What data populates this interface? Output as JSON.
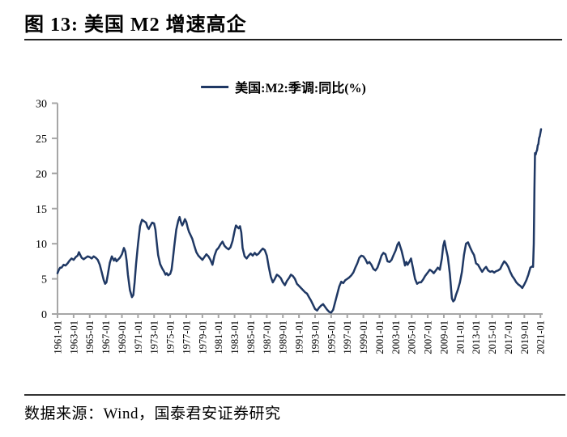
{
  "header": {
    "title": "图 13: 美国 M2 增速高企"
  },
  "footer": {
    "source_text": "数据来源：Wind，国泰君安证券研究"
  },
  "colors": {
    "line": "#1f3864",
    "axis": "#a6a6a6",
    "text": "#000000",
    "rule": "#222222"
  },
  "chart_data": {
    "type": "line",
    "title": "图 13: 美国 M2 增速高企",
    "xlabel": "",
    "ylabel": "",
    "ylim": [
      0,
      30
    ],
    "yticks": [
      0,
      5,
      10,
      15,
      20,
      25,
      30
    ],
    "xlim": [
      1961.0,
      2021.08
    ],
    "x_units": "decimal_year",
    "grid": false,
    "legend_position": "top-center",
    "axis_color": "#a6a6a6",
    "xtick_labels": [
      "1961-01",
      "1963-01",
      "1965-01",
      "1967-01",
      "1969-01",
      "1971-01",
      "1973-01",
      "1975-01",
      "1977-01",
      "1979-01",
      "1981-01",
      "1983-01",
      "1985-01",
      "1987-01",
      "1989-01",
      "1991-01",
      "1993-01",
      "1995-01",
      "1997-01",
      "1999-01",
      "2001-01",
      "2003-01",
      "2005-01",
      "2007-01",
      "2009-01",
      "2011-01",
      "2013-01",
      "2015-01",
      "2017-01",
      "2019-01",
      "2021-01"
    ],
    "series": [
      {
        "name": "美国:M2:季调:同比(%)",
        "color": "#1f3864",
        "points": [
          [
            1961.0,
            5.8
          ],
          [
            1961.17,
            6.3
          ],
          [
            1961.33,
            6.6
          ],
          [
            1961.5,
            6.6
          ],
          [
            1961.75,
            7.0
          ],
          [
            1962.0,
            6.9
          ],
          [
            1962.25,
            7.2
          ],
          [
            1962.5,
            7.6
          ],
          [
            1962.75,
            7.9
          ],
          [
            1963.0,
            7.7
          ],
          [
            1963.25,
            8.1
          ],
          [
            1963.5,
            8.3
          ],
          [
            1963.67,
            8.8
          ],
          [
            1963.83,
            8.4
          ],
          [
            1964.0,
            8.0
          ],
          [
            1964.25,
            7.8
          ],
          [
            1964.5,
            8.0
          ],
          [
            1964.75,
            8.2
          ],
          [
            1965.0,
            8.1
          ],
          [
            1965.25,
            7.9
          ],
          [
            1965.5,
            8.2
          ],
          [
            1965.75,
            8.0
          ],
          [
            1966.0,
            7.7
          ],
          [
            1966.25,
            7.0
          ],
          [
            1966.5,
            5.9
          ],
          [
            1966.75,
            4.8
          ],
          [
            1966.92,
            4.3
          ],
          [
            1967.08,
            4.5
          ],
          [
            1967.25,
            5.6
          ],
          [
            1967.5,
            7.3
          ],
          [
            1967.75,
            8.2
          ],
          [
            1968.0,
            7.6
          ],
          [
            1968.17,
            7.9
          ],
          [
            1968.33,
            7.5
          ],
          [
            1968.5,
            7.7
          ],
          [
            1968.75,
            8.0
          ],
          [
            1969.0,
            8.5
          ],
          [
            1969.25,
            9.4
          ],
          [
            1969.42,
            8.9
          ],
          [
            1969.58,
            7.6
          ],
          [
            1969.75,
            5.6
          ],
          [
            1970.0,
            3.4
          ],
          [
            1970.25,
            2.4
          ],
          [
            1970.42,
            2.7
          ],
          [
            1970.58,
            4.5
          ],
          [
            1970.75,
            7.0
          ],
          [
            1971.0,
            10.0
          ],
          [
            1971.25,
            12.5
          ],
          [
            1971.5,
            13.4
          ],
          [
            1971.75,
            13.2
          ],
          [
            1972.0,
            13.0
          ],
          [
            1972.17,
            12.4
          ],
          [
            1972.33,
            12.1
          ],
          [
            1972.5,
            12.5
          ],
          [
            1972.75,
            13.0
          ],
          [
            1973.0,
            12.9
          ],
          [
            1973.17,
            12.0
          ],
          [
            1973.33,
            10.2
          ],
          [
            1973.5,
            8.4
          ],
          [
            1973.75,
            7.1
          ],
          [
            1974.0,
            6.5
          ],
          [
            1974.25,
            6.0
          ],
          [
            1974.42,
            5.6
          ],
          [
            1974.58,
            5.8
          ],
          [
            1974.75,
            5.5
          ],
          [
            1975.0,
            5.7
          ],
          [
            1975.17,
            6.3
          ],
          [
            1975.33,
            7.8
          ],
          [
            1975.5,
            9.6
          ],
          [
            1975.75,
            12.0
          ],
          [
            1976.0,
            13.3
          ],
          [
            1976.17,
            13.8
          ],
          [
            1976.33,
            13.1
          ],
          [
            1976.5,
            12.6
          ],
          [
            1976.67,
            13.0
          ],
          [
            1976.83,
            13.5
          ],
          [
            1977.0,
            13.1
          ],
          [
            1977.17,
            12.3
          ],
          [
            1977.33,
            11.7
          ],
          [
            1977.5,
            11.3
          ],
          [
            1977.75,
            10.7
          ],
          [
            1978.0,
            9.7
          ],
          [
            1978.25,
            8.8
          ],
          [
            1978.5,
            8.3
          ],
          [
            1978.75,
            8.0
          ],
          [
            1979.0,
            7.7
          ],
          [
            1979.25,
            8.1
          ],
          [
            1979.5,
            8.5
          ],
          [
            1979.75,
            8.2
          ],
          [
            1980.0,
            7.7
          ],
          [
            1980.25,
            7.0
          ],
          [
            1980.5,
            8.3
          ],
          [
            1980.75,
            9.1
          ],
          [
            1981.0,
            9.4
          ],
          [
            1981.25,
            9.9
          ],
          [
            1981.5,
            10.3
          ],
          [
            1981.75,
            9.7
          ],
          [
            1982.0,
            9.4
          ],
          [
            1982.25,
            9.2
          ],
          [
            1982.5,
            9.5
          ],
          [
            1982.75,
            10.4
          ],
          [
            1983.0,
            11.8
          ],
          [
            1983.17,
            12.6
          ],
          [
            1983.33,
            12.4
          ],
          [
            1983.5,
            12.2
          ],
          [
            1983.67,
            12.5
          ],
          [
            1983.83,
            11.6
          ],
          [
            1984.0,
            9.4
          ],
          [
            1984.25,
            8.2
          ],
          [
            1984.5,
            7.9
          ],
          [
            1984.75,
            8.3
          ],
          [
            1985.0,
            8.6
          ],
          [
            1985.25,
            8.3
          ],
          [
            1985.5,
            8.7
          ],
          [
            1985.75,
            8.4
          ],
          [
            1986.0,
            8.6
          ],
          [
            1986.25,
            9.0
          ],
          [
            1986.5,
            9.3
          ],
          [
            1986.75,
            9.1
          ],
          [
            1987.0,
            8.3
          ],
          [
            1987.25,
            6.7
          ],
          [
            1987.5,
            5.3
          ],
          [
            1987.75,
            4.5
          ],
          [
            1988.0,
            5.0
          ],
          [
            1988.25,
            5.6
          ],
          [
            1988.5,
            5.4
          ],
          [
            1988.75,
            5.1
          ],
          [
            1989.0,
            4.5
          ],
          [
            1989.25,
            4.1
          ],
          [
            1989.5,
            4.7
          ],
          [
            1989.75,
            5.1
          ],
          [
            1990.0,
            5.6
          ],
          [
            1990.25,
            5.4
          ],
          [
            1990.5,
            5.0
          ],
          [
            1990.75,
            4.3
          ],
          [
            1991.0,
            4.0
          ],
          [
            1991.25,
            3.7
          ],
          [
            1991.5,
            3.4
          ],
          [
            1991.75,
            3.1
          ],
          [
            1992.0,
            2.9
          ],
          [
            1992.25,
            2.4
          ],
          [
            1992.5,
            1.9
          ],
          [
            1992.75,
            1.3
          ],
          [
            1993.0,
            0.7
          ],
          [
            1993.25,
            0.5
          ],
          [
            1993.5,
            0.9
          ],
          [
            1993.75,
            1.2
          ],
          [
            1994.0,
            1.4
          ],
          [
            1994.25,
            1.0
          ],
          [
            1994.5,
            0.6
          ],
          [
            1994.75,
            0.3
          ],
          [
            1995.0,
            0.2
          ],
          [
            1995.25,
            0.6
          ],
          [
            1995.5,
            1.7
          ],
          [
            1995.75,
            2.8
          ],
          [
            1996.0,
            3.9
          ],
          [
            1996.25,
            4.6
          ],
          [
            1996.5,
            4.4
          ],
          [
            1996.75,
            4.8
          ],
          [
            1997.0,
            5.0
          ],
          [
            1997.25,
            5.2
          ],
          [
            1997.5,
            5.5
          ],
          [
            1997.75,
            5.9
          ],
          [
            1998.0,
            6.6
          ],
          [
            1998.25,
            7.2
          ],
          [
            1998.5,
            8.0
          ],
          [
            1998.75,
            8.3
          ],
          [
            1999.0,
            8.2
          ],
          [
            1999.25,
            7.8
          ],
          [
            1999.5,
            7.2
          ],
          [
            1999.75,
            7.4
          ],
          [
            2000.0,
            7.0
          ],
          [
            2000.25,
            6.4
          ],
          [
            2000.5,
            6.2
          ],
          [
            2000.75,
            6.6
          ],
          [
            2001.0,
            7.4
          ],
          [
            2001.25,
            8.3
          ],
          [
            2001.5,
            8.7
          ],
          [
            2001.75,
            8.5
          ],
          [
            2002.0,
            7.5
          ],
          [
            2002.25,
            7.4
          ],
          [
            2002.5,
            7.7
          ],
          [
            2002.75,
            8.4
          ],
          [
            2003.0,
            9.0
          ],
          [
            2003.25,
            9.9
          ],
          [
            2003.42,
            10.2
          ],
          [
            2003.58,
            9.6
          ],
          [
            2003.75,
            9.0
          ],
          [
            2004.0,
            7.8
          ],
          [
            2004.17,
            6.9
          ],
          [
            2004.33,
            7.4
          ],
          [
            2004.5,
            7.0
          ],
          [
            2004.75,
            7.5
          ],
          [
            2004.92,
            7.9
          ],
          [
            2005.17,
            6.5
          ],
          [
            2005.42,
            5.0
          ],
          [
            2005.67,
            4.3
          ],
          [
            2005.92,
            4.5
          ],
          [
            2006.17,
            4.5
          ],
          [
            2006.42,
            4.9
          ],
          [
            2006.67,
            5.4
          ],
          [
            2007.0,
            5.9
          ],
          [
            2007.25,
            6.3
          ],
          [
            2007.5,
            6.1
          ],
          [
            2007.75,
            5.8
          ],
          [
            2008.0,
            6.2
          ],
          [
            2008.25,
            6.6
          ],
          [
            2008.5,
            6.3
          ],
          [
            2008.75,
            7.9
          ],
          [
            2008.92,
            9.7
          ],
          [
            2009.08,
            10.4
          ],
          [
            2009.25,
            9.4
          ],
          [
            2009.5,
            8.1
          ],
          [
            2009.75,
            5.7
          ],
          [
            2010.0,
            2.2
          ],
          [
            2010.17,
            1.8
          ],
          [
            2010.33,
            2.0
          ],
          [
            2010.5,
            2.7
          ],
          [
            2010.75,
            3.5
          ],
          [
            2011.0,
            4.5
          ],
          [
            2011.25,
            6.0
          ],
          [
            2011.5,
            8.4
          ],
          [
            2011.75,
            10.0
          ],
          [
            2012.0,
            10.2
          ],
          [
            2012.25,
            9.5
          ],
          [
            2012.5,
            8.9
          ],
          [
            2012.75,
            8.4
          ],
          [
            2013.0,
            7.2
          ],
          [
            2013.25,
            7.0
          ],
          [
            2013.5,
            6.5
          ],
          [
            2013.75,
            6.0
          ],
          [
            2014.0,
            6.4
          ],
          [
            2014.25,
            6.7
          ],
          [
            2014.5,
            6.2
          ],
          [
            2014.75,
            6.0
          ],
          [
            2015.0,
            6.1
          ],
          [
            2015.25,
            5.9
          ],
          [
            2015.5,
            6.1
          ],
          [
            2015.75,
            6.2
          ],
          [
            2016.0,
            6.4
          ],
          [
            2016.25,
            7.0
          ],
          [
            2016.5,
            7.5
          ],
          [
            2016.75,
            7.2
          ],
          [
            2017.0,
            6.7
          ],
          [
            2017.25,
            6.0
          ],
          [
            2017.5,
            5.4
          ],
          [
            2017.75,
            5.0
          ],
          [
            2018.0,
            4.5
          ],
          [
            2018.25,
            4.2
          ],
          [
            2018.5,
            4.0
          ],
          [
            2018.75,
            3.7
          ],
          [
            2019.0,
            4.2
          ],
          [
            2019.25,
            4.8
          ],
          [
            2019.5,
            5.6
          ],
          [
            2019.75,
            6.6
          ],
          [
            2020.0,
            6.8
          ],
          [
            2020.08,
            6.7
          ],
          [
            2020.17,
            10.0
          ],
          [
            2020.25,
            17.8
          ],
          [
            2020.33,
            22.9
          ],
          [
            2020.42,
            22.7
          ],
          [
            2020.5,
            23.1
          ],
          [
            2020.58,
            23.3
          ],
          [
            2020.67,
            24.0
          ],
          [
            2020.75,
            24.2
          ],
          [
            2020.83,
            25.0
          ],
          [
            2020.92,
            25.3
          ],
          [
            2021.0,
            25.8
          ],
          [
            2021.08,
            26.3
          ]
        ]
      }
    ]
  }
}
